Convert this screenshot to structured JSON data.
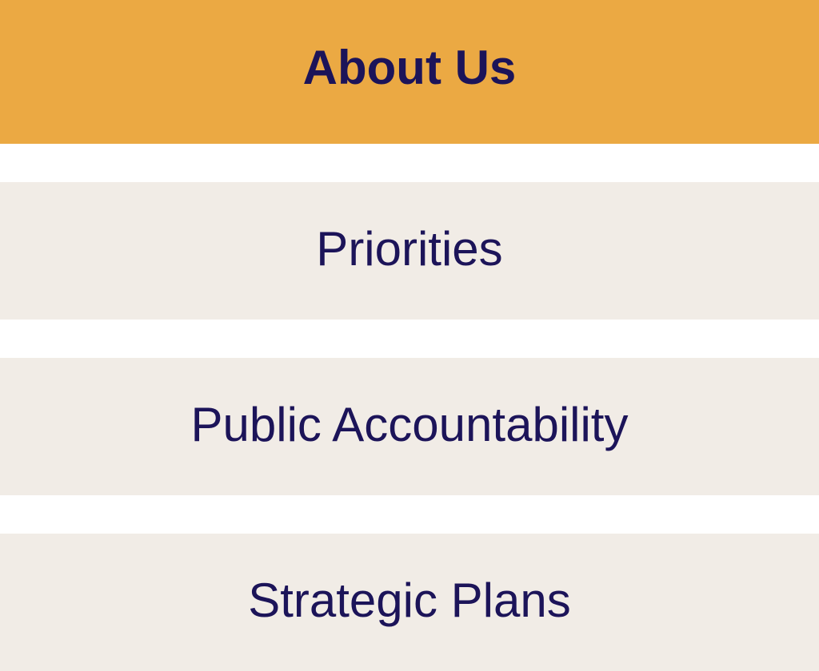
{
  "colors": {
    "header_bg": "#EBA943",
    "item_bg": "#F1ECE6",
    "text": "#1C1459",
    "page_bg": "#FFFFFF"
  },
  "header": {
    "title": "About Us"
  },
  "menu": {
    "items": [
      {
        "label": "Priorities"
      },
      {
        "label": "Public Accountability"
      },
      {
        "label": "Strategic Plans"
      }
    ]
  }
}
